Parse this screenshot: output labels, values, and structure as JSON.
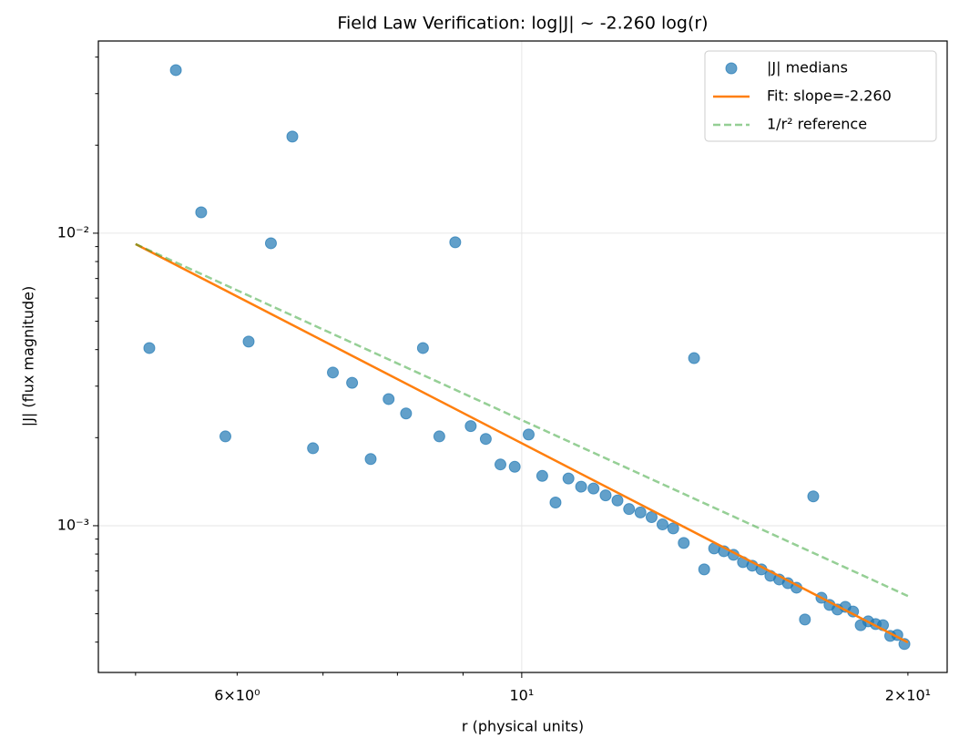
{
  "chart_data": {
    "type": "scatter",
    "title": "Field Law Verification: log|J| ~ -2.260 log(r)",
    "x_label": "r (physical units)",
    "y_label": "|J| (flux magnitude)",
    "xscale": "log",
    "yscale": "log",
    "xlim": [
      4.677,
      21.46
    ],
    "ylim": [
      0.000315,
      0.0454
    ],
    "xticks": [
      {
        "value": 10,
        "label": "10¹"
      }
    ],
    "xminorticks": [
      5,
      {
        "value": 6,
        "label": "6×10⁰"
      },
      7,
      8,
      9,
      {
        "value": 20,
        "label": "2×10¹"
      }
    ],
    "yticks": [
      {
        "value": 0.001,
        "label": "10⁻³"
      },
      {
        "value": 0.01,
        "label": "10⁻²"
      }
    ],
    "yminorticks": [
      0.0004,
      0.0005,
      0.0006,
      0.0007,
      0.0008,
      0.0009,
      0.002,
      0.003,
      0.004,
      0.005,
      0.006,
      0.007,
      0.008,
      0.009,
      0.02,
      0.03,
      0.04
    ],
    "grid": true,
    "legend": "upper right",
    "series": [
      {
        "name": "|J| medians",
        "type": "scatter",
        "color": "#1f77b4",
        "alpha": 0.7,
        "x": [
          5.125,
          5.375,
          5.625,
          5.875,
          6.125,
          6.375,
          6.625,
          6.875,
          7.125,
          7.375,
          7.625,
          7.875,
          8.125,
          8.375,
          8.625,
          8.875,
          9.125,
          9.375,
          9.625,
          9.875,
          10.125,
          10.375,
          10.625,
          10.875,
          11.125,
          11.375,
          11.625,
          11.875,
          12.125,
          12.375,
          12.625,
          12.875,
          13.125,
          13.375,
          13.625,
          13.875,
          14.125,
          14.375,
          14.625,
          14.875,
          15.125,
          15.375,
          15.625,
          15.875,
          16.125,
          16.375,
          16.625,
          16.875,
          17.125,
          17.375,
          17.625,
          17.875,
          18.125,
          18.375,
          18.625,
          18.875,
          19.125,
          19.375,
          19.625,
          19.875
        ],
        "values": [
          0.00405,
          0.0361,
          0.01179,
          0.00202,
          0.00426,
          0.00924,
          0.0214,
          0.00184,
          0.00334,
          0.00308,
          0.00169,
          0.00271,
          0.00242,
          0.00405,
          0.00202,
          0.00931,
          0.00219,
          0.00198,
          0.00162,
          0.00159,
          0.00205,
          0.00148,
          0.0012,
          0.00145,
          0.00136,
          0.00134,
          0.00127,
          0.00122,
          0.00114,
          0.00111,
          0.00107,
          0.00101,
          0.000979,
          0.000873,
          0.00374,
          0.000709,
          0.000836,
          0.000818,
          0.000795,
          0.000751,
          0.00073,
          0.000709,
          0.000674,
          0.000655,
          0.000636,
          0.000614,
          0.000478,
          0.00126,
          0.000567,
          0.000536,
          0.000517,
          0.000528,
          0.000509,
          0.000457,
          0.000471,
          0.000461,
          0.000457,
          0.00042,
          0.000423,
          0.000394
        ]
      },
      {
        "name": "Fit: slope=-2.260",
        "type": "line",
        "color": "#ff7f0e",
        "alpha": 1,
        "dashed": false,
        "x": [
          5,
          20
        ],
        "values": [
          0.00918,
          0.000399
        ]
      },
      {
        "name": "1/r² reference",
        "type": "line",
        "color": "#2ca02c",
        "alpha": 0.5,
        "dashed": true,
        "x": [
          5,
          20
        ],
        "values": [
          0.00918,
          0.000575
        ]
      }
    ]
  }
}
